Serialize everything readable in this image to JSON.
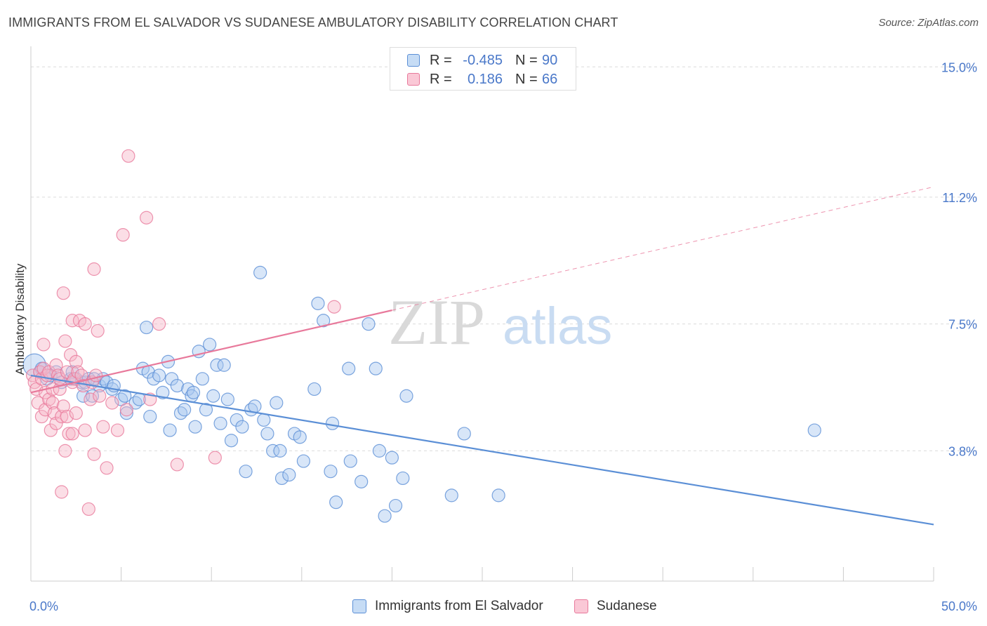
{
  "title": "IMMIGRANTS FROM EL SALVADOR VS SUDANESE AMBULATORY DISABILITY CORRELATION CHART",
  "source": "Source: ZipAtlas.com",
  "watermark": {
    "zip": "ZIP",
    "atlas": "atlas"
  },
  "legend": {
    "rows": [
      {
        "r_label": "R =",
        "r_value": "-0.485",
        "n_label": "N =",
        "n_value": "90",
        "color": "#a8c8f0",
        "stroke": "#5b8fd6"
      },
      {
        "r_label": "R =",
        "r_value": "0.186",
        "n_label": "N =",
        "n_value": "66",
        "color": "#f7b6c8",
        "stroke": "#e8799b"
      }
    ]
  },
  "bottom_legend": [
    {
      "label": "Immigrants from El Salvador",
      "color": "#a8c8f0",
      "stroke": "#5b8fd6"
    },
    {
      "label": "Sudanese",
      "color": "#f7b6c8",
      "stroke": "#e8799b"
    }
  ],
  "chart_data": {
    "type": "scatter",
    "title": "IMMIGRANTS FROM EL SALVADOR VS SUDANESE AMBULATORY DISABILITY CORRELATION CHART",
    "xlabel": "",
    "ylabel": "Ambulatory Disability",
    "xlim": [
      0,
      50
    ],
    "ylim": [
      0,
      15.6
    ],
    "x_tick_labels": [
      "0.0%",
      "50.0%"
    ],
    "y_ticks": [
      3.8,
      7.5,
      11.2,
      15.0
    ],
    "y_tick_labels": [
      "3.8%",
      "7.5%",
      "11.2%",
      "15.0%"
    ],
    "grid": true,
    "series": [
      {
        "name": "Immigrants from El Salvador",
        "color": "#5b8fd6",
        "fill": "#a8c8f0",
        "trend": {
          "x": [
            0,
            50
          ],
          "y": [
            6.0,
            1.65
          ],
          "dashed_from": null
        },
        "points": [
          [
            0.2,
            6.3
          ],
          [
            0.5,
            6.1
          ],
          [
            0.6,
            6.2
          ],
          [
            0.9,
            5.9
          ],
          [
            1.1,
            6.0
          ],
          [
            1.4,
            6.1
          ],
          [
            1.7,
            5.8
          ],
          [
            2.2,
            5.9
          ],
          [
            2.3,
            6.1
          ],
          [
            2.5,
            5.9
          ],
          [
            2.8,
            5.8
          ],
          [
            2.9,
            5.4
          ],
          [
            3.0,
            5.8
          ],
          [
            3.2,
            5.9
          ],
          [
            3.4,
            5.4
          ],
          [
            3.8,
            5.7
          ],
          [
            4.0,
            5.9
          ],
          [
            4.2,
            5.8
          ],
          [
            4.5,
            5.6
          ],
          [
            4.6,
            5.7
          ],
          [
            5.0,
            5.3
          ],
          [
            5.2,
            5.4
          ],
          [
            5.3,
            4.9
          ],
          [
            5.8,
            5.2
          ],
          [
            6.2,
            6.2
          ],
          [
            6.4,
            7.4
          ],
          [
            6.5,
            6.1
          ],
          [
            6.6,
            4.8
          ],
          [
            6.8,
            5.9
          ],
          [
            7.1,
            6.0
          ],
          [
            7.3,
            5.5
          ],
          [
            7.6,
            6.4
          ],
          [
            7.7,
            4.4
          ],
          [
            7.8,
            5.9
          ],
          [
            8.1,
            5.7
          ],
          [
            8.3,
            4.9
          ],
          [
            8.5,
            5.0
          ],
          [
            8.7,
            5.6
          ],
          [
            8.9,
            5.4
          ],
          [
            9.1,
            4.5
          ],
          [
            9.3,
            6.7
          ],
          [
            9.5,
            5.9
          ],
          [
            9.7,
            5.0
          ],
          [
            9.9,
            6.9
          ],
          [
            10.1,
            5.4
          ],
          [
            10.3,
            6.3
          ],
          [
            10.5,
            4.6
          ],
          [
            10.7,
            6.3
          ],
          [
            10.9,
            5.3
          ],
          [
            11.1,
            4.1
          ],
          [
            11.4,
            4.7
          ],
          [
            11.7,
            4.5
          ],
          [
            11.9,
            3.2
          ],
          [
            12.2,
            5.0
          ],
          [
            12.4,
            5.1
          ],
          [
            12.7,
            9.0
          ],
          [
            12.9,
            4.7
          ],
          [
            13.1,
            4.3
          ],
          [
            13.4,
            3.8
          ],
          [
            13.6,
            5.2
          ],
          [
            13.8,
            3.8
          ],
          [
            13.9,
            3.0
          ],
          [
            14.3,
            3.1
          ],
          [
            14.6,
            4.3
          ],
          [
            14.9,
            4.2
          ],
          [
            15.1,
            3.5
          ],
          [
            15.7,
            5.6
          ],
          [
            15.9,
            8.1
          ],
          [
            16.2,
            7.6
          ],
          [
            16.6,
            3.2
          ],
          [
            16.7,
            4.6
          ],
          [
            16.9,
            2.3
          ],
          [
            17.6,
            6.2
          ],
          [
            17.7,
            3.5
          ],
          [
            18.3,
            2.9
          ],
          [
            18.7,
            7.5
          ],
          [
            19.1,
            6.2
          ],
          [
            19.3,
            3.8
          ],
          [
            19.6,
            1.9
          ],
          [
            20.0,
            3.6
          ],
          [
            20.2,
            2.2
          ],
          [
            20.6,
            3.0
          ],
          [
            20.8,
            5.4
          ],
          [
            23.3,
            2.5
          ],
          [
            24.0,
            4.3
          ],
          [
            25.9,
            2.5
          ],
          [
            43.4,
            4.4
          ],
          [
            3.5,
            5.9
          ],
          [
            6.0,
            5.3
          ],
          [
            9.0,
            5.5
          ]
        ]
      },
      {
        "name": "Sudanese",
        "color": "#e8799b",
        "fill": "#f7b6c8",
        "trend": {
          "x": [
            0,
            50
          ],
          "y": [
            5.5,
            11.5
          ],
          "dashed_from": 20
        },
        "points": [
          [
            0.1,
            6.0
          ],
          [
            0.2,
            5.8
          ],
          [
            0.3,
            5.6
          ],
          [
            0.4,
            5.2
          ],
          [
            0.5,
            6.1
          ],
          [
            0.6,
            5.9
          ],
          [
            0.6,
            4.8
          ],
          [
            0.7,
            6.2
          ],
          [
            0.7,
            6.9
          ],
          [
            0.8,
            5.5
          ],
          [
            0.8,
            5.0
          ],
          [
            0.9,
            6.0
          ],
          [
            1.0,
            6.1
          ],
          [
            1.0,
            5.3
          ],
          [
            1.1,
            4.4
          ],
          [
            1.2,
            5.6
          ],
          [
            1.2,
            5.2
          ],
          [
            1.3,
            4.9
          ],
          [
            1.4,
            6.3
          ],
          [
            1.4,
            4.6
          ],
          [
            1.5,
            6.0
          ],
          [
            1.6,
            5.6
          ],
          [
            1.6,
            5.9
          ],
          [
            1.7,
            2.6
          ],
          [
            1.7,
            4.8
          ],
          [
            1.8,
            8.4
          ],
          [
            1.8,
            5.1
          ],
          [
            1.9,
            3.8
          ],
          [
            1.9,
            7.0
          ],
          [
            2.0,
            6.1
          ],
          [
            2.0,
            4.8
          ],
          [
            2.1,
            4.3
          ],
          [
            2.2,
            6.6
          ],
          [
            2.3,
            5.8
          ],
          [
            2.3,
            7.6
          ],
          [
            2.3,
            4.3
          ],
          [
            2.4,
            5.9
          ],
          [
            2.5,
            6.4
          ],
          [
            2.5,
            4.9
          ],
          [
            2.6,
            6.1
          ],
          [
            2.7,
            7.6
          ],
          [
            2.8,
            6.0
          ],
          [
            2.9,
            5.7
          ],
          [
            3.0,
            7.5
          ],
          [
            3.0,
            4.4
          ],
          [
            3.2,
            2.1
          ],
          [
            3.3,
            5.3
          ],
          [
            3.4,
            5.8
          ],
          [
            3.5,
            3.7
          ],
          [
            3.5,
            9.1
          ],
          [
            3.6,
            6.0
          ],
          [
            3.7,
            7.3
          ],
          [
            3.8,
            5.4
          ],
          [
            4.0,
            4.5
          ],
          [
            4.2,
            3.3
          ],
          [
            4.5,
            5.2
          ],
          [
            4.8,
            4.4
          ],
          [
            5.1,
            10.1
          ],
          [
            5.3,
            5.0
          ],
          [
            5.4,
            12.4
          ],
          [
            6.4,
            10.6
          ],
          [
            6.6,
            5.3
          ],
          [
            7.1,
            7.5
          ],
          [
            8.1,
            3.4
          ],
          [
            10.2,
            3.6
          ],
          [
            16.8,
            8.0
          ]
        ]
      }
    ]
  }
}
